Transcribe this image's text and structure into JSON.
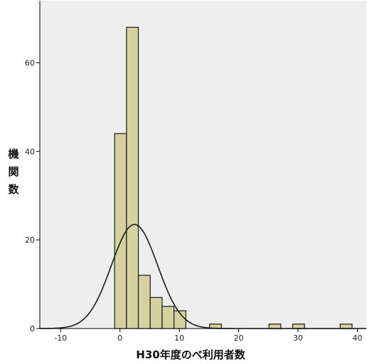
{
  "chart_data": {
    "type": "bar",
    "subtype": "histogram",
    "xlabel": "H30年度のべ利用者数",
    "ylabel_chars": [
      "機",
      "関",
      "数"
    ],
    "xlim": [
      -13.5,
      41.5
    ],
    "ylim": [
      0,
      74
    ],
    "x_ticks": [
      -10,
      0,
      10,
      20,
      30,
      40
    ],
    "x_tick_labels": [
      "-10",
      "0",
      "10",
      "20",
      "30",
      "40"
    ],
    "y_ticks": [
      0,
      20,
      40,
      60
    ],
    "y_tick_labels": [
      "0",
      "20",
      "40",
      "60"
    ],
    "bins": [
      {
        "start": -0.9,
        "end": 1.1,
        "count": 44
      },
      {
        "start": 1.1,
        "end": 3.1,
        "count": 68
      },
      {
        "start": 3.1,
        "end": 5.1,
        "count": 12
      },
      {
        "start": 5.1,
        "end": 7.1,
        "count": 7
      },
      {
        "start": 7.1,
        "end": 9.1,
        "count": 5
      },
      {
        "start": 9.1,
        "end": 11.1,
        "count": 4
      },
      {
        "start": 15.1,
        "end": 17.1,
        "count": 1
      },
      {
        "start": 25.1,
        "end": 27.1,
        "count": 1
      },
      {
        "start": 29.1,
        "end": 31.1,
        "count": 1
      },
      {
        "start": 37.1,
        "end": 39.1,
        "count": 1
      }
    ],
    "normal_curve": {
      "mean": 2.45,
      "sd": 3.9,
      "peak": 23.5
    },
    "grid": false
  },
  "colors": {
    "plot_background": "#eeeeee",
    "bar_fill": "#d6d2a0",
    "bar_stroke": "#1a1a1a",
    "curve": "#1a1a1a",
    "axis": "#000000"
  }
}
